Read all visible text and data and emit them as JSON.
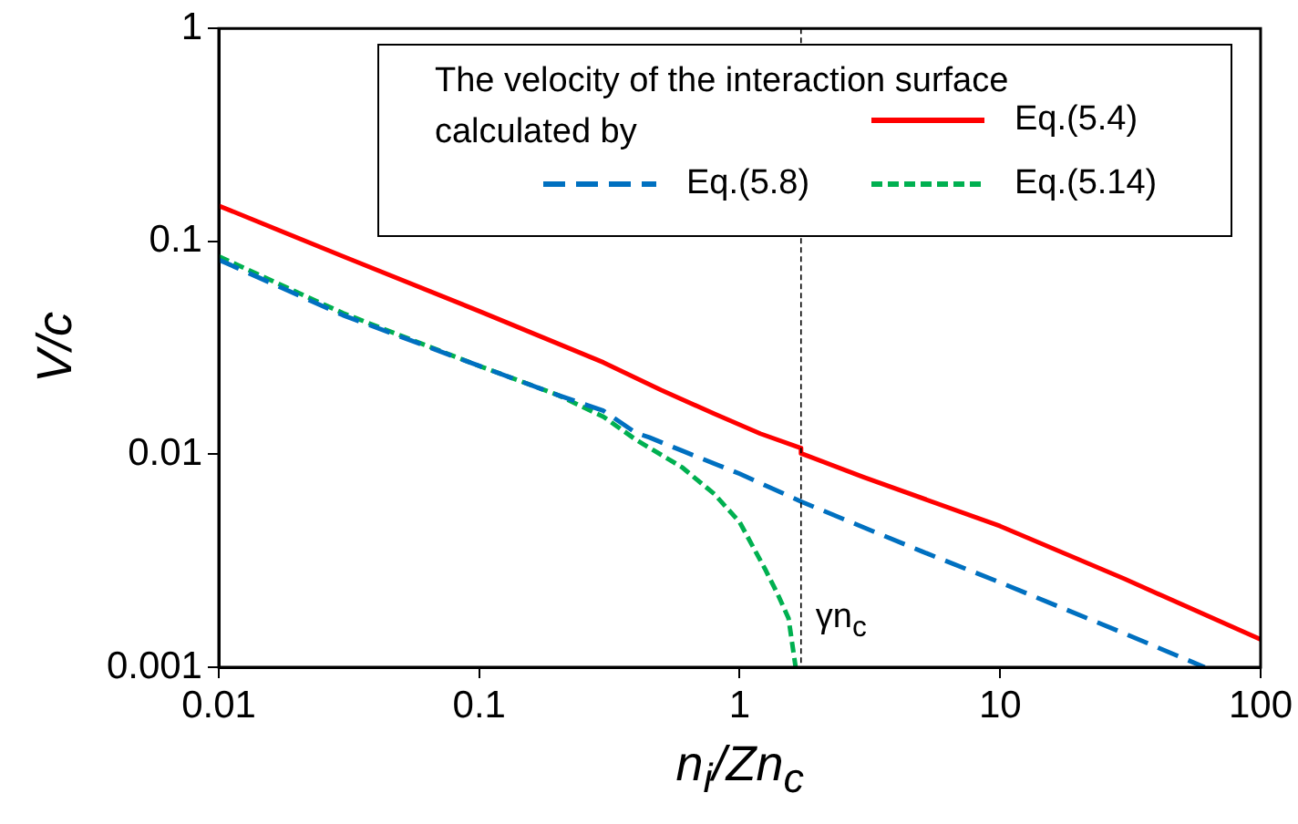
{
  "chart_data": {
    "type": "line",
    "xlabel": "n$_{i}$/Zn$_{c}$",
    "ylabel": "V/c",
    "legend_title": "The velocity of the interaction surface calculated by",
    "log": "xy",
    "xlim": [
      0.01,
      100
    ],
    "ylim": [
      0.001,
      1
    ],
    "xticks": [
      0.01,
      0.1,
      1,
      10,
      100
    ],
    "yticks": [
      0.001,
      0.01,
      0.1,
      1
    ],
    "legend": "top right",
    "ref_lines": [
      {
        "axis": "x",
        "value": 1.72,
        "label": "γn$_{c}$",
        "line_style": "dashed",
        "color": "#000000"
      }
    ],
    "series": [
      {
        "name": "Eq.(5.4)",
        "color": "#ff0000",
        "line_style": "solid",
        "x": [
          0.01,
          0.03,
          0.1,
          0.3,
          0.5,
          0.8,
          1.2,
          1.72,
          1.72,
          3,
          10,
          30,
          100
        ],
        "values": [
          0.147,
          0.085,
          0.047,
          0.027,
          0.02,
          0.0155,
          0.0125,
          0.0107,
          0.0101,
          0.0078,
          0.0046,
          0.0026,
          0.00135
        ]
      },
      {
        "name": "Eq.(5.8)",
        "color": "#0070c0",
        "line_style": "dashed",
        "x": [
          0.01,
          0.03,
          0.1,
          0.2,
          0.3,
          0.4,
          0.45,
          0.6,
          1,
          1.72,
          5,
          10,
          30,
          61
        ],
        "values": [
          0.082,
          0.045,
          0.026,
          0.019,
          0.016,
          0.0126,
          0.012,
          0.0104,
          0.0081,
          0.006,
          0.0035,
          0.0025,
          0.00144,
          0.001
        ]
      },
      {
        "name": "Eq.(5.14)",
        "color": "#00b050",
        "line_style": "dotted",
        "x": [
          0.01,
          0.03,
          0.1,
          0.2,
          0.3,
          0.4,
          0.6,
          0.8,
          1,
          1.25,
          1.4,
          1.54,
          1.64
        ],
        "values": [
          0.085,
          0.046,
          0.026,
          0.019,
          0.015,
          0.0117,
          0.0087,
          0.0065,
          0.0048,
          0.0029,
          0.0022,
          0.0017,
          0.001
        ]
      }
    ]
  }
}
